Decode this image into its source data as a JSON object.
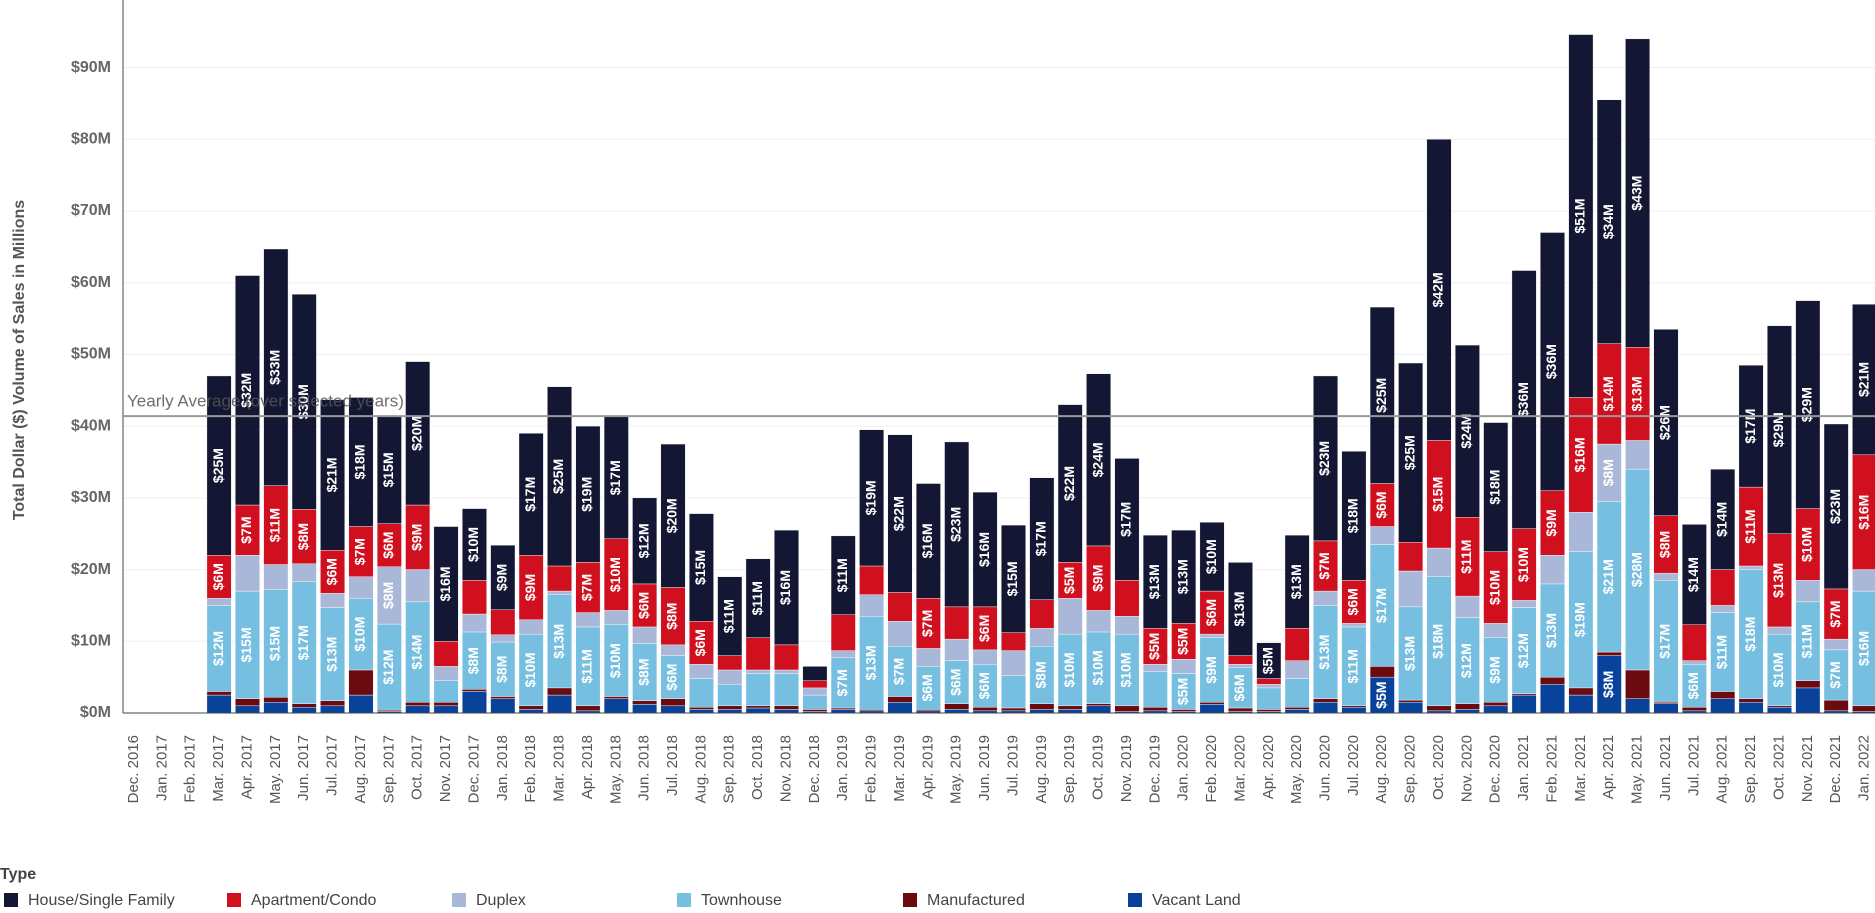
{
  "chart_data": {
    "type": "stacked_bar",
    "y_label": "Total Dollar ($) Volume of Sales in Millions",
    "legend_title": "Type",
    "reference_line": {
      "value": 41.4,
      "label": "Yearly Average (over selected years)"
    },
    "categories": [
      "Dec. 2016",
      "Jan. 2017",
      "Feb. 2017",
      "Mar. 2017",
      "Apr. 2017",
      "May. 2017",
      "Jun. 2017",
      "Jul. 2017",
      "Aug. 2017",
      "Sep. 2017",
      "Oct. 2017",
      "Nov. 2017",
      "Dec. 2017",
      "Jan. 2018",
      "Feb. 2018",
      "Mar. 2018",
      "Apr. 2018",
      "May. 2018",
      "Jun. 2018",
      "Jul. 2018",
      "Aug. 2018",
      "Sep. 2018",
      "Oct. 2018",
      "Nov. 2018",
      "Dec. 2018",
      "Jan. 2019",
      "Feb. 2019",
      "Mar. 2019",
      "Apr. 2019",
      "May. 2019",
      "Jun. 2019",
      "Jul. 2019",
      "Aug. 2019",
      "Sep. 2019",
      "Oct. 2019",
      "Nov. 2019",
      "Dec. 2019",
      "Jan. 2020",
      "Feb. 2020",
      "Mar. 2020",
      "Apr. 2020",
      "May. 2020",
      "Jun. 2020",
      "Jul. 2020",
      "Aug. 2020",
      "Sep. 2020",
      "Oct. 2020",
      "Nov. 2020",
      "Dec. 2020",
      "Jan. 2021",
      "Feb. 2021",
      "Mar. 2021",
      "Apr. 2021",
      "May. 2021",
      "Jun. 2021",
      "Jul. 2021",
      "Aug. 2021",
      "Sep. 2021",
      "Oct. 2021",
      "Nov. 2021",
      "Dec. 2021",
      "Jan. 2022"
    ],
    "series": [
      {
        "name": "House/Single Family",
        "color": "#141733",
        "values": [
          0,
          0,
          0,
          25,
          32,
          33,
          30,
          21,
          18,
          15,
          20,
          16,
          10,
          9,
          17,
          25,
          19,
          17,
          12,
          20,
          15,
          11,
          11,
          16,
          2,
          11,
          19,
          22,
          16,
          23,
          16,
          15,
          17,
          22,
          24,
          17,
          13,
          13,
          9.6,
          13,
          5,
          13,
          23,
          18,
          24.6,
          25,
          42,
          24,
          18,
          36,
          36,
          50.6,
          34,
          43,
          26,
          14,
          14,
          17,
          29,
          29,
          23,
          21
        ],
        "value_labels": [
          null,
          null,
          null,
          "$25M",
          "$32M",
          "$33M",
          "$30M",
          "$21M",
          "$18M",
          "$15M",
          "$20M",
          "$16M",
          "$10M",
          "$9M",
          "$17M",
          "$25M",
          "$19M",
          "$17M",
          "$12M",
          "$20M",
          "$15M",
          "$11M",
          "$11M",
          "$16M",
          null,
          "$11M",
          "$19M",
          "$22M",
          "$16M",
          "$23M",
          "$16M",
          "$15M",
          "$17M",
          "$22M",
          "$24M",
          "$17M",
          "$13M",
          "$13M",
          "$10M",
          "$13M",
          "$5M",
          "$13M",
          "$23M",
          "$18M",
          "$25M",
          "$25M",
          "$42M",
          "$24M",
          "$18M",
          "$36M",
          "$36M",
          "$51M",
          "$34M",
          "$43M",
          "$26M",
          "$14M",
          "$14M",
          "$17M",
          "$29M",
          "$29M",
          "$23M",
          "$21M"
        ]
      },
      {
        "name": "Apartment/Condo",
        "color": "#d0101f",
        "values": [
          0,
          0,
          0,
          6,
          7,
          11,
          7.6,
          6,
          7,
          6,
          9,
          3.5,
          4.7,
          3.5,
          9,
          3.5,
          7,
          10,
          6,
          8,
          6,
          2,
          4.5,
          3.5,
          1,
          5,
          4,
          4,
          7,
          4.5,
          6,
          2.5,
          4,
          5,
          9,
          5,
          5,
          5,
          6,
          1.2,
          0.8,
          4.5,
          7,
          6,
          6,
          4,
          15,
          11,
          10,
          10,
          9,
          16,
          14,
          13,
          8,
          5,
          5,
          11,
          13,
          10,
          7,
          16
        ],
        "value_labels": [
          null,
          null,
          null,
          "$6M",
          "$7M",
          "$11M",
          "$8M",
          "$6M",
          "$7M",
          "$6M",
          "$9M",
          null,
          null,
          null,
          "$9M",
          null,
          "$7M",
          "$10M",
          "$6M",
          "$8M",
          "$6M",
          null,
          null,
          null,
          null,
          null,
          null,
          null,
          "$7M",
          null,
          "$6M",
          null,
          null,
          "$5M",
          "$9M",
          null,
          "$5M",
          "$5M",
          "$6M",
          null,
          null,
          null,
          "$7M",
          "$6M",
          "$6M",
          null,
          "$15M",
          "$11M",
          "$10M",
          "$10M",
          "$9M",
          "$16M",
          "$14M",
          "$13M",
          "$8M",
          null,
          null,
          "$11M",
          "$13M",
          "$10M",
          "$7M",
          "$16M"
        ]
      },
      {
        "name": "Duplex",
        "color": "#a9b8d8",
        "values": [
          0,
          0,
          0,
          1,
          5,
          3.5,
          2.5,
          2,
          3,
          8,
          4.5,
          2,
          2.5,
          1,
          2,
          0.5,
          2,
          2,
          2.3,
          1.5,
          2,
          2,
          0.5,
          0.5,
          1,
          1,
          3,
          3.5,
          2.5,
          3,
          2,
          3.5,
          2.5,
          5,
          3,
          2.5,
          1,
          2,
          0.5,
          0.5,
          0.5,
          2.5,
          2,
          0.5,
          2.5,
          5,
          4,
          3,
          2,
          1,
          4,
          5.5,
          8,
          4,
          1,
          0.5,
          1,
          0.5,
          1,
          3,
          1.5,
          3
        ],
        "value_labels": [
          null,
          null,
          null,
          null,
          null,
          null,
          null,
          null,
          null,
          "$8M",
          null,
          null,
          null,
          null,
          null,
          null,
          null,
          null,
          null,
          null,
          null,
          null,
          null,
          null,
          null,
          null,
          null,
          null,
          null,
          null,
          null,
          null,
          null,
          null,
          null,
          null,
          null,
          null,
          null,
          null,
          null,
          null,
          null,
          null,
          null,
          null,
          null,
          null,
          null,
          null,
          null,
          null,
          "$8M",
          null,
          null,
          null,
          null,
          null,
          null,
          null,
          null,
          null
        ]
      },
      {
        "name": "Townhouse",
        "color": "#76bfe0",
        "values": [
          0,
          0,
          0,
          12,
          15,
          15,
          17,
          13,
          10,
          12,
          14,
          3,
          8,
          7.6,
          10,
          13,
          11,
          10,
          8,
          6,
          4,
          3,
          4.5,
          4.5,
          2,
          7,
          13,
          7,
          6,
          6,
          6,
          4.5,
          8,
          10,
          10,
          10,
          5,
          5,
          9,
          5.6,
          3,
          4,
          13,
          11,
          17,
          13,
          18,
          12,
          9,
          12,
          13,
          19,
          21,
          28,
          17,
          6,
          11,
          18,
          10,
          11,
          7,
          16
        ],
        "value_labels": [
          null,
          null,
          null,
          "$12M",
          "$15M",
          "$15M",
          "$17M",
          "$13M",
          "$10M",
          "$12M",
          "$14M",
          null,
          "$8M",
          "$8M",
          "$10M",
          "$13M",
          "$11M",
          "$10M",
          "$8M",
          "$6M",
          null,
          null,
          null,
          null,
          null,
          "$7M",
          "$13M",
          "$7M",
          "$6M",
          "$6M",
          "$6M",
          null,
          "$8M",
          "$10M",
          "$10M",
          "$10M",
          null,
          "$5M",
          "$9M",
          "$6M",
          null,
          null,
          "$13M",
          "$11M",
          "$17M",
          "$13M",
          "$18M",
          "$12M",
          "$9M",
          "$12M",
          "$13M",
          "$19M",
          "$21M",
          "$28M",
          "$17M",
          "$6M",
          "$11M",
          "$18M",
          "$10M",
          "$11M",
          "$7M",
          "$16M"
        ]
      },
      {
        "name": "Manufactured",
        "color": "#6b0a0f",
        "values": [
          0,
          0,
          0,
          0.5,
          1,
          0.7,
          0.5,
          0.7,
          3.5,
          0.2,
          0.5,
          0.5,
          0.3,
          0.3,
          0.5,
          1,
          0.7,
          0.3,
          0.5,
          1,
          0.3,
          0.5,
          0.3,
          0.5,
          0.3,
          0.2,
          0.2,
          0.8,
          0.2,
          0.8,
          0.5,
          0.4,
          0.8,
          0.5,
          0.3,
          0.8,
          0.5,
          0.3,
          0.3,
          0.5,
          0.3,
          0.3,
          0.5,
          0.2,
          1.5,
          0.3,
          0.7,
          0.8,
          0.5,
          0.2,
          1,
          1,
          0.5,
          4,
          0.2,
          0.5,
          1,
          0.5,
          0.2,
          1,
          1.5,
          0.8
        ]
      },
      {
        "name": "Vacant Land",
        "color": "#08429a",
        "values": [
          0,
          0,
          0,
          2.5,
          1,
          1.5,
          0.8,
          1,
          2.5,
          0.2,
          1,
          1,
          3,
          2,
          0.5,
          2.5,
          0.3,
          2,
          1.2,
          1,
          0.5,
          0.5,
          0.7,
          0.5,
          0.2,
          0.5,
          0.3,
          1.5,
          0.3,
          0.5,
          0.3,
          0.3,
          0.5,
          0.5,
          1,
          0.2,
          0.3,
          0.2,
          1.2,
          0.2,
          0.2,
          0.5,
          1.5,
          0.8,
          5,
          1.5,
          0.3,
          0.5,
          1,
          2.5,
          4,
          2.5,
          8,
          2,
          1.3,
          0.3,
          2,
          1.5,
          0.8,
          3.5,
          0.3,
          0.2
        ],
        "value_labels": [
          null,
          null,
          null,
          null,
          null,
          null,
          null,
          null,
          null,
          null,
          null,
          null,
          null,
          null,
          null,
          null,
          null,
          null,
          null,
          null,
          null,
          null,
          null,
          null,
          null,
          null,
          null,
          null,
          null,
          null,
          null,
          null,
          null,
          null,
          null,
          null,
          null,
          null,
          null,
          null,
          null,
          null,
          null,
          null,
          "$5M",
          null,
          null,
          null,
          null,
          null,
          null,
          null,
          "$8M",
          null,
          null,
          null,
          null,
          null,
          null,
          null,
          null,
          null
        ]
      }
    ],
    "ylim": [
      0,
      99
    ],
    "yticks": [
      {
        "value": 0,
        "label": "$0M"
      },
      {
        "value": 10,
        "label": "$10M"
      },
      {
        "value": 20,
        "label": "$20M"
      },
      {
        "value": 30,
        "label": "$30M"
      },
      {
        "value": 40,
        "label": "$40M"
      },
      {
        "value": 50,
        "label": "$50M"
      },
      {
        "value": 60,
        "label": "$60M"
      },
      {
        "value": 70,
        "label": "$70M"
      },
      {
        "value": 80,
        "label": "$80M"
      },
      {
        "value": 90,
        "label": "$90M"
      }
    ],
    "grid": true
  }
}
